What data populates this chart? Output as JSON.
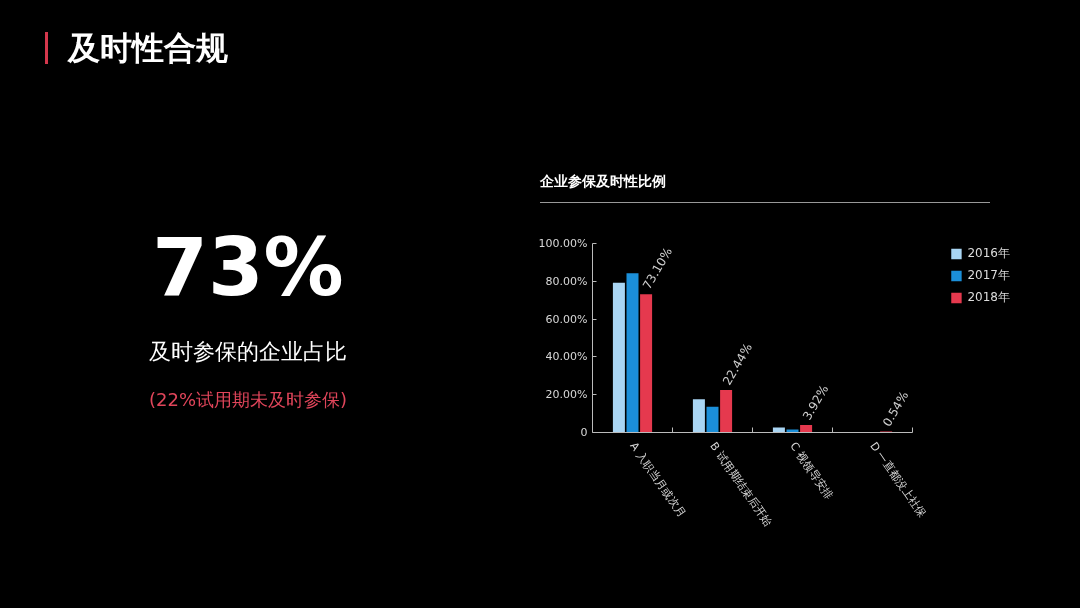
{
  "chart_data": {
    "type": "bar",
    "title": "及时性合规",
    "subtitle": "企业参保及时性比例",
    "annotations": [
      "73%",
      "及时参保的企业占比",
      "(22%试用期未及时参保)"
    ],
    "categories": [
      "A 入职当月或次月",
      "B 试用期结束后开始",
      "C 视领导安排",
      "D 一直都没上社保"
    ],
    "series": [
      {
        "name": "2016年",
        "color": "#a9d5f3",
        "values": [
          79.2,
          17.6,
          2.6,
          null
        ]
      },
      {
        "name": "2017年",
        "color": "#1b8fd9",
        "values": [
          84.2,
          13.6,
          1.6,
          null
        ]
      },
      {
        "name": "2018年",
        "color": "#e5394e",
        "values": [
          73.1,
          22.44,
          3.92,
          0.54
        ],
        "value_labels": [
          "73.10%",
          "22.44%",
          "3.92%",
          "0.54%"
        ]
      }
    ],
    "ylim": [
      0,
      100
    ],
    "yticks": [
      {
        "value": 0,
        "label": "0"
      },
      {
        "value": 20,
        "label": "20.00%"
      },
      {
        "value": 40,
        "label": "40.00%"
      },
      {
        "value": 60,
        "label": "60.00%"
      },
      {
        "value": 80,
        "label": "80.00%"
      },
      {
        "value": 100,
        "label": "100.00%"
      }
    ],
    "legend": "top right"
  }
}
